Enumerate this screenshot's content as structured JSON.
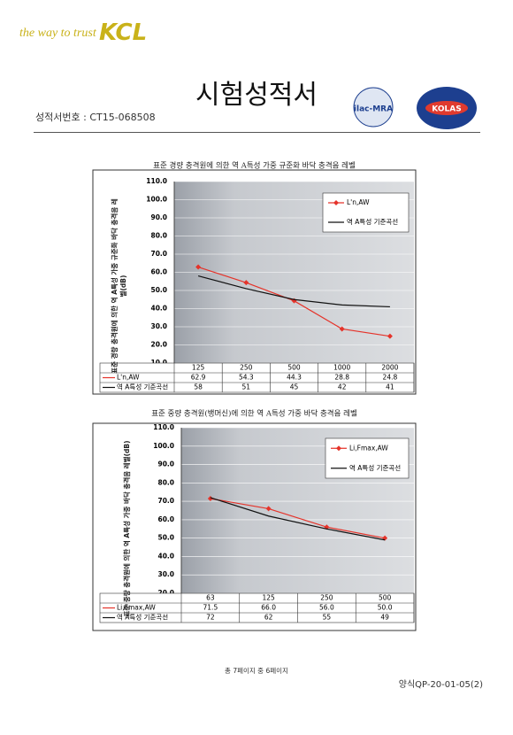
{
  "header": {
    "slogan": "the way to trust",
    "brand": "KCL",
    "title": "시험성적서",
    "report_number_label": "성적서번호 :",
    "report_number": "CT15-068508",
    "logos": [
      "ilac-MRA",
      "KOLAS"
    ]
  },
  "chart_data": [
    {
      "type": "line",
      "title": "표준 경량 충격원에 의한 역 A특성 가중 규준화 바닥 충격음 레벨",
      "y_label": "표준 경량 충격원에 의한 역 A특성 가중 규준화 바닥 충격음 레벨(dB)",
      "categories": [
        "125",
        "250",
        "500",
        "1000",
        "2000"
      ],
      "series": [
        {
          "name": "L'n,AW",
          "color": "#e5332a",
          "marker": "diamond",
          "values": [
            62.9,
            54.3,
            44.3,
            28.8,
            24.8
          ]
        },
        {
          "name": "역 A특성 기준곡선",
          "color": "#111111",
          "values": [
            58,
            51,
            45,
            42,
            41
          ]
        }
      ],
      "ylim": [
        10,
        110
      ],
      "yticks": [
        {
          "value": 10,
          "label": "10.0"
        },
        {
          "value": 20,
          "label": "20.0"
        },
        {
          "value": 30,
          "label": "30.0"
        },
        {
          "value": 40,
          "label": "40.0"
        },
        {
          "value": 50,
          "label": "50.0"
        },
        {
          "value": 60,
          "label": "60.0"
        },
        {
          "value": 70,
          "label": "70.0"
        },
        {
          "value": 80,
          "label": "80.0"
        },
        {
          "value": 90,
          "label": "90.0"
        },
        {
          "value": 100,
          "label": "100.0"
        },
        {
          "value": 110,
          "label": "110.0"
        }
      ],
      "grid": true,
      "legend": "upper right"
    },
    {
      "type": "line",
      "title": "표준 중량 충격원(뱅머신)에 의한 역 A특성 가중 바닥 충격음 레벨",
      "y_label": "표준 중량 충격원에 의한 역 A특성 가중 바닥 충격음 레벨(dB)",
      "categories": [
        "63",
        "125",
        "250",
        "500"
      ],
      "series": [
        {
          "name": "Li,Fmax,AW",
          "color": "#e5332a",
          "marker": "diamond",
          "values": [
            71.5,
            66,
            56,
            50
          ],
          "value_labels": [
            "71.5",
            "66.0",
            "56.0",
            "50.0"
          ]
        },
        {
          "name": "역 A특성 기준곡선",
          "color": "#111111",
          "values": [
            72,
            62,
            55,
            49
          ]
        }
      ],
      "ylim": [
        20,
        110
      ],
      "yticks": [
        {
          "value": 20,
          "label": "20.0"
        },
        {
          "value": 30,
          "label": "30.0"
        },
        {
          "value": 40,
          "label": "40.0"
        },
        {
          "value": 50,
          "label": "50.0"
        },
        {
          "value": 60,
          "label": "60.0"
        },
        {
          "value": 70,
          "label": "70.0"
        },
        {
          "value": 80,
          "label": "80.0"
        },
        {
          "value": 90,
          "label": "90.0"
        },
        {
          "value": 100,
          "label": "100.0"
        },
        {
          "value": 110,
          "label": "110.0"
        }
      ],
      "grid": true,
      "legend": "upper right"
    }
  ],
  "footer": {
    "page": "총 7페이지 중 6페이지",
    "form": "양식QP-20-01-05(2)"
  }
}
